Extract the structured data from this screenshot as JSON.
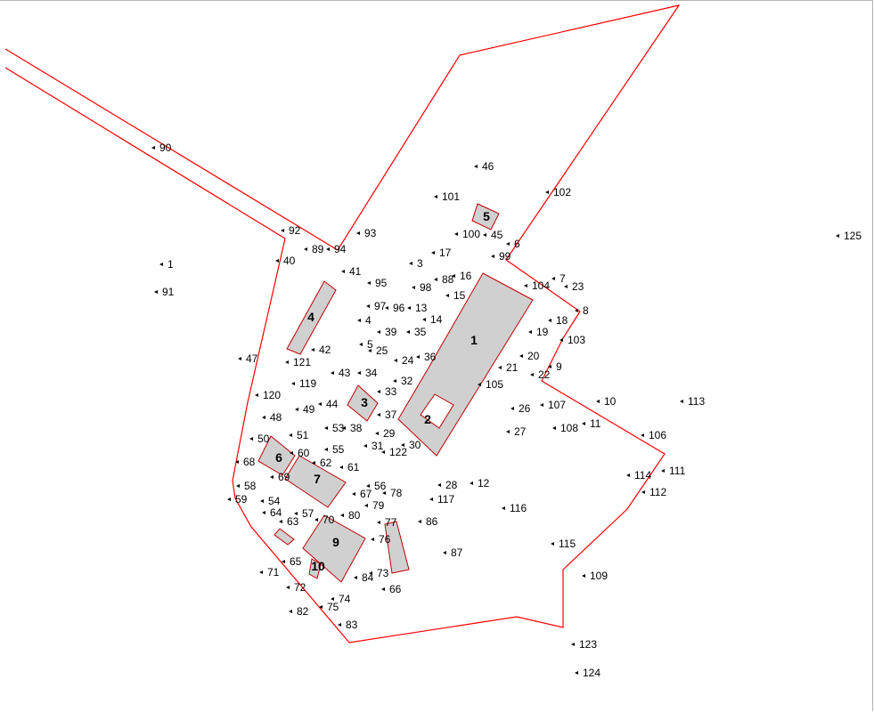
{
  "map": {
    "colors": {
      "boundary": "#ff0000",
      "building_fill": "#d0d0d0",
      "building_stroke": "#c00000",
      "text": "#000000"
    },
    "buildings": [
      {
        "label": "1"
      },
      {
        "label": "2"
      },
      {
        "label": "3"
      },
      {
        "label": "4"
      },
      {
        "label": "5"
      },
      {
        "label": "6"
      },
      {
        "label": "7"
      },
      {
        "label": "9"
      },
      {
        "label": "10"
      }
    ],
    "points": [
      "1",
      "3",
      "4",
      "5",
      "6",
      "7",
      "8",
      "9",
      "10",
      "11",
      "12",
      "13",
      "14",
      "15",
      "16",
      "17",
      "18",
      "19",
      "20",
      "21",
      "22",
      "23",
      "24",
      "25",
      "26",
      "27",
      "28",
      "29",
      "30",
      "31",
      "32",
      "33",
      "34",
      "35",
      "36",
      "37",
      "38",
      "39",
      "40",
      "41",
      "42",
      "43",
      "44",
      "45",
      "46",
      "47",
      "48",
      "49",
      "50",
      "51",
      "53",
      "54",
      "55",
      "56",
      "57",
      "58",
      "59",
      "60",
      "61",
      "62",
      "63",
      "64",
      "65",
      "66",
      "67",
      "68",
      "69",
      "70",
      "71",
      "72",
      "73",
      "74",
      "75",
      "76",
      "77",
      "78",
      "79",
      "80",
      "82",
      "83",
      "84",
      "86",
      "87",
      "88",
      "89",
      "90",
      "91",
      "92",
      "93",
      "94",
      "95",
      "96",
      "97",
      "98",
      "99",
      "100",
      "101",
      "102",
      "103",
      "104",
      "105",
      "106",
      "107",
      "108",
      "109",
      "111",
      "112",
      "113",
      "114",
      "115",
      "116",
      "117",
      "119",
      "120",
      "121",
      "122",
      "123",
      "124",
      "125"
    ]
  }
}
